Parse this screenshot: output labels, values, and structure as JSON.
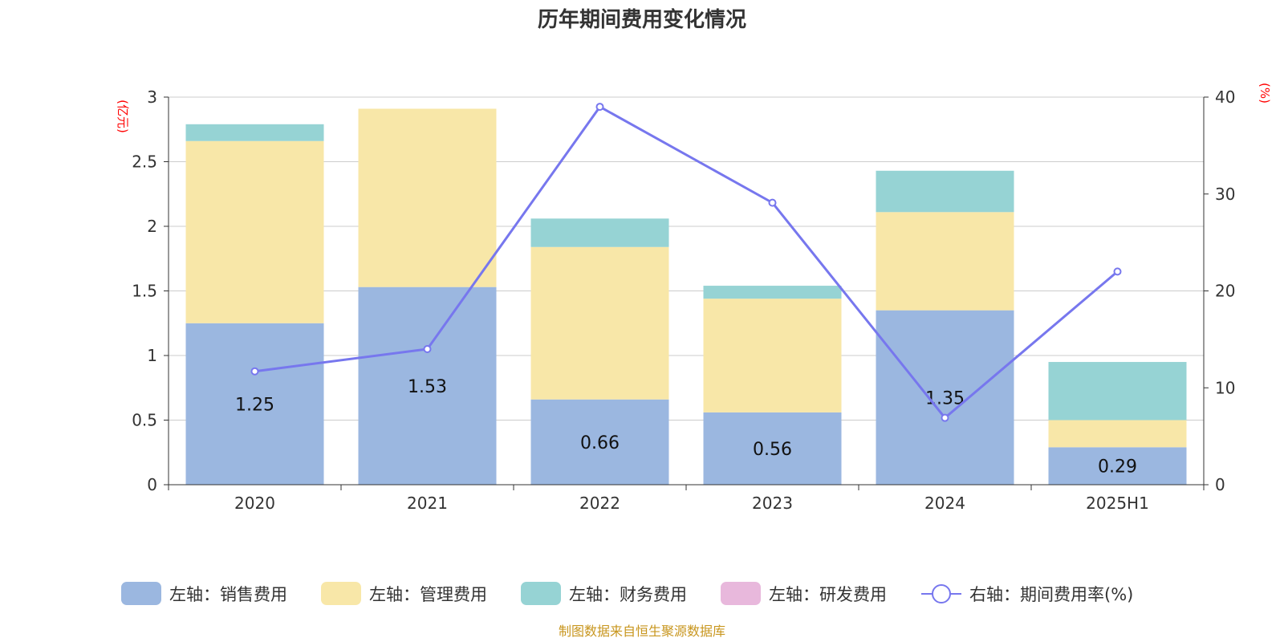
{
  "chart_data": {
    "type": "bar",
    "stacked": true,
    "title": "历年期间费用变化情况",
    "categories": [
      "2020",
      "2021",
      "2022",
      "2023",
      "2024",
      "2025H1"
    ],
    "left_axis": {
      "unit": "(亿元)",
      "ylim": [
        0,
        3
      ],
      "ticks": [
        "0",
        "0.5",
        "1",
        "1.5",
        "2",
        "2.5",
        "3"
      ]
    },
    "right_axis": {
      "unit": "(%)",
      "ylim": [
        0,
        40
      ],
      "ticks": [
        "0",
        "10",
        "20",
        "30",
        "40"
      ]
    },
    "series": [
      {
        "name": "左轴：销售费用",
        "kind": "bar",
        "axis": "left",
        "color": "#9bb7e0",
        "values": [
          1.25,
          1.53,
          0.66,
          0.56,
          1.35,
          0.29
        ],
        "labels": [
          "1.25",
          "1.53",
          "0.66",
          "0.56",
          "1.35",
          "0.29"
        ]
      },
      {
        "name": "左轴：管理费用",
        "kind": "bar",
        "axis": "left",
        "color": "#f8e7a8",
        "values": [
          1.41,
          1.38,
          1.18,
          0.88,
          0.76,
          0.21
        ]
      },
      {
        "name": "左轴：财务费用",
        "kind": "bar",
        "axis": "left",
        "color": "#96d3d4",
        "values": [
          0.13,
          0,
          0.22,
          0.1,
          0.32,
          0.45
        ]
      },
      {
        "name": "左轴：研发费用",
        "kind": "bar",
        "axis": "left",
        "color": "#e8b8dc",
        "values": [
          0,
          0,
          0,
          0,
          0,
          0
        ]
      },
      {
        "name": "右轴：期间费用率(%)",
        "kind": "line",
        "axis": "right",
        "color": "#7777ee",
        "values": [
          11.7,
          14.0,
          39.0,
          29.1,
          6.9,
          22.0
        ]
      }
    ],
    "legend_position": "bottom",
    "grid": true
  },
  "footer": {
    "source": "制图数据来自恒生聚源数据库"
  }
}
